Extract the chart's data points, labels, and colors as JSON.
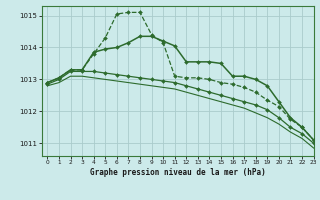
{
  "title": "Graphe pression niveau de la mer (hPa)",
  "background_color": "#cceaea",
  "grid_color": "#aacccc",
  "line_color": "#2d6b2d",
  "xlim": [
    -0.5,
    23
  ],
  "ylim": [
    1010.6,
    1015.3
  ],
  "yticks": [
    1011,
    1012,
    1013,
    1014,
    1015
  ],
  "xticks": [
    0,
    1,
    2,
    3,
    4,
    5,
    6,
    7,
    8,
    9,
    10,
    11,
    12,
    13,
    14,
    15,
    16,
    17,
    18,
    19,
    20,
    21,
    22,
    23
  ],
  "series": [
    {
      "x": [
        0,
        1,
        2,
        3,
        4,
        5,
        6,
        7,
        8,
        9,
        10,
        11,
        12,
        13,
        14,
        15,
        16,
        17,
        18,
        19,
        20,
        21,
        22,
        23
      ],
      "y": [
        1012.9,
        1013.05,
        1013.3,
        1013.3,
        1013.8,
        1014.3,
        1015.05,
        1015.1,
        1015.1,
        1014.4,
        1014.15,
        1013.1,
        1013.05,
        1013.05,
        1013.0,
        1012.9,
        1012.85,
        1012.75,
        1012.6,
        1012.35,
        1012.15,
        1011.75,
        1011.5,
        1011.1
      ],
      "marker": "D",
      "markersize": 2.0,
      "linestyle": "--",
      "linewidth": 0.9
    },
    {
      "x": [
        0,
        1,
        2,
        3,
        4,
        5,
        6,
        7,
        8,
        9,
        10,
        11,
        12,
        13,
        14,
        15,
        16,
        17,
        18,
        19,
        20,
        21,
        22,
        23
      ],
      "y": [
        1012.9,
        1013.05,
        1013.3,
        1013.3,
        1013.85,
        1013.95,
        1014.0,
        1014.15,
        1014.35,
        1014.35,
        1014.2,
        1014.05,
        1013.55,
        1013.55,
        1013.55,
        1013.5,
        1013.1,
        1013.1,
        1013.0,
        1012.8,
        1012.3,
        1011.8,
        1011.5,
        1011.1
      ],
      "marker": "D",
      "markersize": 2.0,
      "linestyle": "-",
      "linewidth": 1.1
    },
    {
      "x": [
        0,
        1,
        2,
        3,
        4,
        5,
        6,
        7,
        8,
        9,
        10,
        11,
        12,
        13,
        14,
        15,
        16,
        17,
        18,
        19,
        20,
        21,
        22,
        23
      ],
      "y": [
        1012.85,
        1013.0,
        1013.25,
        1013.25,
        1013.25,
        1013.2,
        1013.15,
        1013.1,
        1013.05,
        1013.0,
        1012.95,
        1012.9,
        1012.8,
        1012.7,
        1012.6,
        1012.5,
        1012.4,
        1012.3,
        1012.2,
        1012.05,
        1011.8,
        1011.5,
        1011.3,
        1011.0
      ],
      "marker": "D",
      "markersize": 2.0,
      "linestyle": "-",
      "linewidth": 0.9
    },
    {
      "x": [
        0,
        1,
        2,
        3,
        4,
        5,
        6,
        7,
        8,
        9,
        10,
        11,
        12,
        13,
        14,
        15,
        16,
        17,
        18,
        19,
        20,
        21,
        22,
        23
      ],
      "y": [
        1012.8,
        1012.9,
        1013.1,
        1013.1,
        1013.05,
        1013.0,
        1012.95,
        1012.9,
        1012.85,
        1012.8,
        1012.75,
        1012.7,
        1012.6,
        1012.5,
        1012.4,
        1012.3,
        1012.2,
        1012.1,
        1011.95,
        1011.8,
        1011.6,
        1011.35,
        1011.15,
        1010.85
      ],
      "marker": null,
      "markersize": 0,
      "linestyle": "-",
      "linewidth": 0.8
    }
  ]
}
